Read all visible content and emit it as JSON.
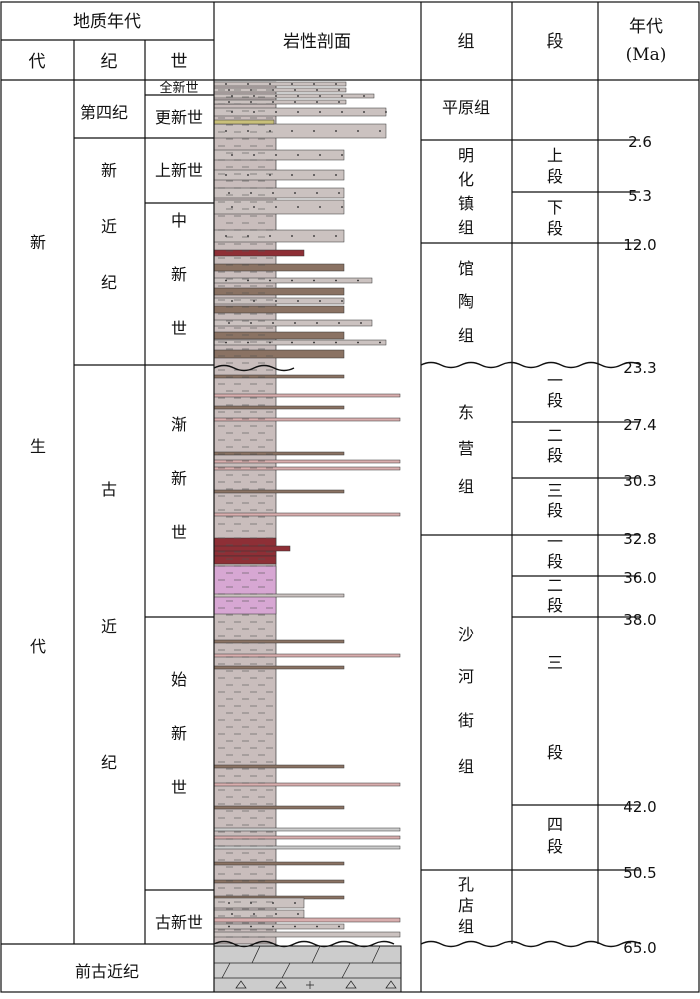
{
  "header": {
    "chrono_title": "地质年代",
    "era_col": "代",
    "period_col": "纪",
    "epoch_col": "世",
    "lithology_col": "岩性剖面",
    "formation_col": "组",
    "member_col": "段",
    "age_col_line1": "年代",
    "age_col_line2": "(Ma)"
  },
  "eras": {
    "cenozoic_chars": [
      "新",
      "生",
      "代"
    ],
    "pre_paleogene": "前古近纪"
  },
  "periods": {
    "quaternary": "第四纪",
    "neogene_chars": [
      "新",
      "近",
      "纪"
    ],
    "paleogene_chars": [
      "古",
      "近",
      "纪"
    ]
  },
  "epochs": {
    "holocene": "全新世",
    "pleistocene": "更新世",
    "pliocene": "上新世",
    "miocene_chars": [
      "中",
      "新",
      "世"
    ],
    "oligocene_chars": [
      "渐",
      "新",
      "世"
    ],
    "eocene_chars": [
      "始",
      "新",
      "世"
    ],
    "paleocene": "古新世"
  },
  "formations": {
    "pingyuan": "平原组",
    "minghuazhen_chars": [
      "明",
      "化",
      "镇",
      "组"
    ],
    "guantao_chars": [
      "馆",
      "陶",
      "组"
    ],
    "dongying_chars": [
      "东",
      "营",
      "组"
    ],
    "shahejie_chars": [
      "沙",
      "河",
      "街",
      "组"
    ],
    "kongdian_chars": [
      "孔",
      "店",
      "组"
    ]
  },
  "members": {
    "minghua_upper_chars": [
      "上",
      "段"
    ],
    "minghua_lower_chars": [
      "下",
      "段"
    ],
    "dongying_1_chars": [
      "一",
      "段"
    ],
    "dongying_2_chars": [
      "二",
      "段"
    ],
    "dongying_3_chars": [
      "三",
      "段"
    ],
    "shahe_1_chars": [
      "一",
      "段"
    ],
    "shahe_2_chars": [
      "二",
      "段"
    ],
    "shahe_3_chars": [
      "三",
      "段"
    ],
    "shahe_4_chars": [
      "四",
      "段"
    ]
  },
  "ages": [
    "2.6",
    "5.3",
    "12.0",
    "23.3",
    "27.4",
    "30.3",
    "32.8",
    "36.0",
    "38.0",
    "42.0",
    "50.5",
    "65.0"
  ],
  "colors": {
    "grid": "#111111",
    "clay": "#c9bdbc",
    "sand": "#cbc2c0",
    "brown_sand": "#8a7263",
    "pink_sand": "#d9aeae",
    "red_mud": "#8e2f36",
    "purple_mud": "#d7a7d3",
    "yellow_sand": "#c9c07a",
    "basement": "#cccccc"
  }
}
